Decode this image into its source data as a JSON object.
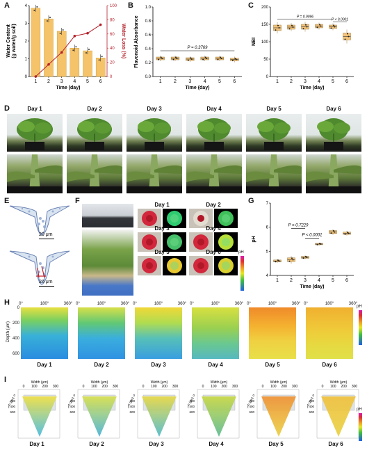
{
  "panels": {
    "A": "A",
    "B": "B",
    "C": "C",
    "D": "D",
    "E": "E",
    "F": "F",
    "G": "G",
    "H": "H",
    "I": "I"
  },
  "colors": {
    "bar": "#f5c36a",
    "bar_stroke": "#c8962a",
    "line": "#b5202a",
    "box": "#f2c37a",
    "box_stroke": "#a07a3a"
  },
  "chart_data": [
    {
      "id": "A",
      "type": "bar",
      "categories": [
        "1",
        "2",
        "3",
        "4",
        "5",
        "6"
      ],
      "series": [
        {
          "name": "Water Content",
          "values": [
            3.85,
            3.25,
            2.55,
            1.6,
            1.45,
            1.05
          ]
        },
        {
          "name": "Water Loss",
          "values": [
            0,
            17,
            34,
            57,
            61,
            73
          ]
        }
      ],
      "xlabel": "Time (day)",
      "ylabel": "Water Content\n(g water/g soil)",
      "y2label": "Water Loss (%)",
      "ylim": [
        0,
        4
      ],
      "y2lim": [
        0,
        100
      ],
      "yticks": [
        "0",
        "1",
        "2",
        "3",
        "4"
      ],
      "y2ticks": [
        "0",
        "20",
        "40",
        "60",
        "80",
        "100"
      ]
    },
    {
      "id": "B",
      "type": "box",
      "categories": [
        "1",
        "2",
        "3",
        "4",
        "5",
        "6"
      ],
      "values": [
        0.26,
        0.26,
        0.25,
        0.26,
        0.26,
        0.245
      ],
      "xlabel": "Time (day)",
      "ylabel": "Flavonoid Absorbance",
      "ylim": [
        0,
        1.0
      ],
      "yticks": [
        "0.0",
        "0.2",
        "0.4",
        "0.6",
        "0.8",
        "1.0"
      ],
      "annotation": "P = 0.3769"
    },
    {
      "id": "C",
      "type": "box",
      "categories": [
        "1",
        "2",
        "3",
        "4",
        "5",
        "6"
      ],
      "values": [
        140,
        142,
        143,
        145,
        143,
        115
      ],
      "xlabel": "Time (day)",
      "ylabel": "NBI",
      "ylim": [
        0,
        200
      ],
      "yticks": [
        "0",
        "50",
        "100",
        "150",
        "200"
      ],
      "annotations": [
        "P = 0.9996",
        "P < 0.0001"
      ]
    },
    {
      "id": "G",
      "type": "box",
      "categories": [
        "1",
        "2",
        "3",
        "4",
        "5",
        "6"
      ],
      "values": [
        4.6,
        4.65,
        4.75,
        5.3,
        5.8,
        5.75
      ],
      "xlabel": "Time (day)",
      "ylabel": "pH",
      "ylim": [
        4,
        7
      ],
      "yticks": [
        "4",
        "5",
        "6",
        "7"
      ],
      "annotations": [
        "P = 0.7229",
        "P < 0.0001"
      ]
    }
  ],
  "days": [
    "Day 1",
    "Day 2",
    "Day 3",
    "Day 4",
    "Day 5",
    "Day 6"
  ],
  "scale_bar": "20 μm",
  "heatmap": {
    "xticks": [
      "0°",
      "180°",
      "360°"
    ],
    "ylabel": "Depth (μm)",
    "yticks": [
      "0",
      "200",
      "400",
      "600"
    ],
    "colorbar_label": "pH",
    "colorbar_ticks": [
      "7",
      "6",
      "5",
      "4"
    ]
  },
  "cones": {
    "width_label": "Width (μm)",
    "width_ticks": [
      "0",
      "100",
      "200",
      "300"
    ],
    "depth_label": "Depth (μm)",
    "depth_ticks": [
      "0",
      "200",
      "400",
      "600"
    ],
    "colorbar_label": "pH",
    "colorbar_ticks": [
      "7",
      "6",
      "5",
      "4"
    ]
  },
  "F_colorbar": {
    "label": "pH",
    "ticks": [
      "7",
      "6",
      "5",
      "4"
    ]
  }
}
